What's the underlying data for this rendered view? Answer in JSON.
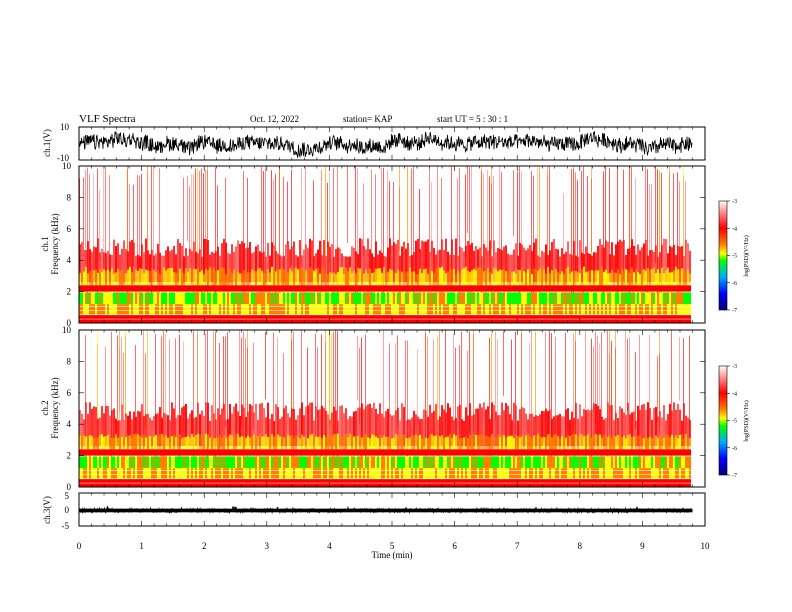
{
  "header": {
    "title": "VLF Spectra",
    "date": "Oct. 12, 2022",
    "station": "station= KAP",
    "start": "start  UT =   5  : 30 : 1"
  },
  "colors": {
    "palette": [
      "#000080",
      "#0000ff",
      "#00aaff",
      "#00ff00",
      "#ffff00",
      "#ff8000",
      "#ff0000",
      "#ffffff"
    ],
    "trace": "#000000"
  },
  "chart_data": [
    {
      "type": "line",
      "panel": "ch1-waveform",
      "ylabel": "ch.1(V)",
      "ylim": [
        -10,
        10
      ],
      "yticks": [
        "10",
        "-10"
      ]
    },
    {
      "type": "heatmap",
      "panel": "ch1-spectrogram",
      "ylabel_line1": "ch.1",
      "ylabel_line2": "Frequency  (kHz)",
      "ylim": [
        0,
        10
      ],
      "yticks": [
        "0",
        "2",
        "4",
        "6",
        "8",
        "10"
      ],
      "colorbar": {
        "label": "log(PSD)(V²/Hz)",
        "range": [
          -7,
          -3
        ],
        "ticks": [
          "-3",
          "-4",
          "-5",
          "-6",
          "-7"
        ]
      }
    },
    {
      "type": "heatmap",
      "panel": "ch2-spectrogram",
      "ylabel_line1": "ch.2",
      "ylabel_line2": "Frequency  (kHz)",
      "ylim": [
        0,
        10
      ],
      "yticks": [
        "0",
        "2",
        "4",
        "6",
        "8",
        "10"
      ],
      "colorbar": {
        "label": "log(PSD)(V²/Hz)",
        "range": [
          -7,
          -3
        ],
        "ticks": [
          "-3",
          "-4",
          "-5",
          "-6",
          "-7"
        ]
      }
    },
    {
      "type": "line",
      "panel": "ch3-waveform",
      "ylabel": "ch.3(V)",
      "ylim": [
        -5,
        5
      ],
      "yticks": [
        "5",
        "0",
        "-5"
      ]
    }
  ],
  "xaxis": {
    "label": "Time  (min)",
    "range": [
      0,
      10
    ],
    "data_end": 9.8,
    "ticks": [
      "0",
      "1",
      "2",
      "3",
      "4",
      "5",
      "6",
      "7",
      "8",
      "9",
      "10"
    ]
  }
}
